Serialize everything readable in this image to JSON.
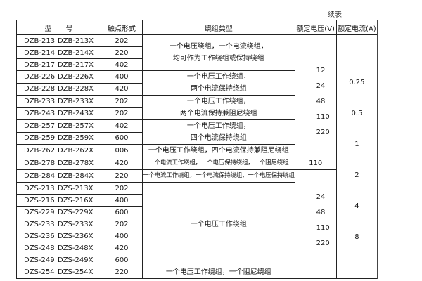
{
  "continued_label": "续表",
  "headers": [
    "型　　号",
    "触点形式",
    "绕组类型",
    "额定电压(V)",
    "额定电流(A)"
  ],
  "rows": [
    {
      "model": "DZB-213",
      "model_x": "DZB-213X",
      "contact": "202"
    },
    {
      "model": "DZB-214",
      "model_x": "DZB-214X",
      "contact": "220"
    },
    {
      "model": "DZB-217",
      "model_x": "DZB-217X",
      "contact": "402"
    },
    {
      "model": "DZB-226",
      "model_x": "DZB-226X",
      "contact": "400"
    },
    {
      "model": "DZB-228",
      "model_x": "DZB-228X",
      "contact": "420"
    },
    {
      "model": "DZB-233",
      "model_x": "DZB-233X",
      "contact": "202"
    },
    {
      "model": "DZB-243",
      "model_x": "DZB-243X",
      "contact": "202"
    },
    {
      "model": "DZB-257",
      "model_x": "DZB-257X",
      "contact": "402"
    },
    {
      "model": "DZB-259",
      "model_x": "DZB-259X",
      "contact": "600"
    },
    {
      "model": "DZB-262",
      "model_x": "DZB-262X",
      "contact": "006"
    },
    {
      "model": "DZB-278",
      "model_x": "DZB-278X",
      "contact": "420"
    },
    {
      "model": "DZB-284",
      "model_x": "DZB-284X",
      "contact": "220"
    },
    {
      "model": "DZS-213",
      "model_x": "DZS-213X",
      "contact": "202"
    },
    {
      "model": "DZS-216",
      "model_x": "DZS-216X",
      "contact": "400"
    },
    {
      "model": "DZS-229",
      "model_x": "DZS-229X",
      "contact": "600"
    },
    {
      "model": "DZS-233",
      "model_x": "DZS-233X",
      "contact": "202"
    },
    {
      "model": "DZS-236",
      "model_x": "DZS-236X",
      "contact": "400"
    },
    {
      "model": "DZS-248",
      "model_x": "DZS-248X",
      "contact": "420"
    },
    {
      "model": "DZS-249",
      "model_x": "DZS-249X",
      "contact": "600"
    },
    {
      "model": "DZS-254",
      "model_x": "DZS-254X",
      "contact": "220"
    }
  ],
  "windings": [
    [
      "一个电压绕组，一个电流绕组，",
      "均可作为工作绕组或保持绕组"
    ],
    [
      "一个电压工作绕组，",
      "两个电流保持绕组"
    ],
    [
      "一个电压工作绕组，",
      "两个电流保持兼阻尼绕组"
    ],
    [
      "一个电压工作绕组，",
      "四个电流保持绕组"
    ],
    [
      "一个电压工作绕组，四个电流保持兼阻尼绕组"
    ],
    [
      "一个电流工作绕组，一个电压保持绕组，一个阻尼绕组"
    ],
    [
      "一个电流工作绕组，一个电流保持绕组，一个电压保持绕组"
    ],
    [
      "一个电压工作绕组"
    ],
    [
      "一个电压工作绕组，一个阻尼绕组"
    ]
  ],
  "voltages": [
    [
      "12",
      "24",
      "48",
      "110",
      "220"
    ],
    [
      "110"
    ],
    [
      "24",
      "48",
      "110",
      "220"
    ]
  ],
  "currents": [
    "0.25",
    "0.5",
    "1",
    "2",
    "4",
    "8"
  ]
}
